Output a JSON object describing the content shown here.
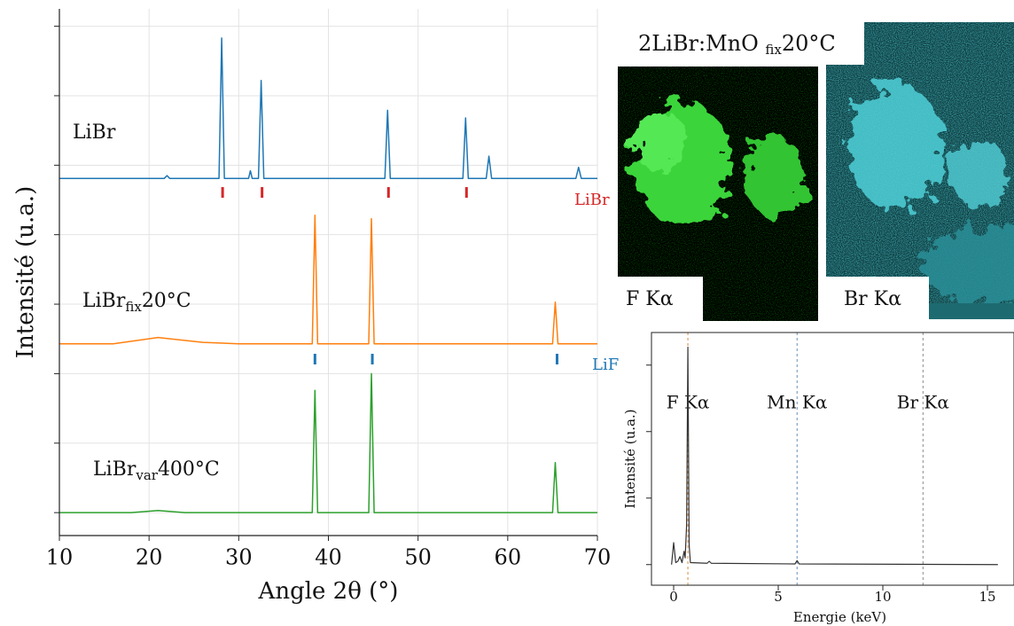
{
  "chart_data": [
    {
      "type": "line",
      "xlabel": "Angle 2θ (°)",
      "ylabel": "Intensité (u.a.)",
      "xlim": [
        10,
        70
      ],
      "xticks": [
        10,
        20,
        30,
        40,
        50,
        60,
        70
      ],
      "ylim": [
        -0.33,
        7.25
      ],
      "yticks": [
        0,
        1,
        2,
        3,
        4,
        5,
        6,
        7
      ],
      "grid": true,
      "series": [
        {
          "name": "LiBr",
          "color": "#1f77b4",
          "x": [
            10,
            21.7,
            22,
            22.3,
            27.8,
            28.1,
            28.4,
            31.1,
            31.3,
            31.5,
            32.2,
            32.5,
            32.8,
            46.3,
            46.6,
            46.9,
            55.0,
            55.3,
            55.6,
            57.6,
            57.9,
            58.2,
            67.6,
            67.9,
            68.2,
            70
          ],
          "values": [
            4.81,
            4.81,
            4.85,
            4.81,
            4.81,
            6.83,
            4.81,
            4.81,
            4.92,
            4.81,
            4.81,
            6.22,
            4.81,
            4.81,
            5.79,
            4.81,
            4.81,
            5.68,
            4.81,
            4.81,
            5.13,
            4.81,
            4.81,
            4.97,
            4.81,
            4.81
          ]
        },
        {
          "name": "LiBr",
          "name_sub": "fix",
          "name_suffix": "20°C",
          "color": "#ff7f0e",
          "x": [
            10,
            16,
            21,
            26,
            30,
            38.2,
            38.5,
            38.8,
            44.5,
            44.8,
            45.1,
            65.0,
            65.3,
            65.6,
            70
          ],
          "values": [
            2.43,
            2.43,
            2.52,
            2.45,
            2.43,
            2.43,
            4.28,
            2.43,
            2.43,
            4.23,
            2.43,
            2.43,
            3.03,
            2.43,
            2.43
          ]
        },
        {
          "name": "LiBr",
          "name_sub": "var",
          "name_suffix": "400°C",
          "color": "#2ca02c",
          "x": [
            10,
            18,
            21,
            24,
            38.2,
            38.5,
            38.8,
            44.5,
            44.8,
            45.1,
            65.0,
            65.3,
            65.6,
            70
          ],
          "values": [
            0,
            0,
            0.03,
            0,
            0,
            1.76,
            0,
            0,
            2.0,
            0,
            0,
            0.72,
            0,
            0
          ]
        }
      ],
      "references": [
        {
          "name": "LiBr",
          "color": "#d62728",
          "x": [
            28.2,
            32.6,
            46.7,
            55.4
          ]
        },
        {
          "name": "LiF",
          "color": "#1f77b4",
          "x": [
            38.5,
            44.9,
            65.5
          ]
        }
      ]
    },
    {
      "type": "line",
      "xlabel": "Energie (keV)",
      "ylabel": "Intensité (u.a.)",
      "xlim": [
        -1.06,
        16.27
      ],
      "xticks": [
        0,
        5,
        10,
        15
      ],
      "ylim": [
        -0.31,
        3.49
      ],
      "yticks": [
        0,
        1,
        2,
        3
      ],
      "grid": false,
      "series": [
        {
          "color": "#333333",
          "x": [
            -0.1,
            0,
            0.1,
            0.2,
            0.3,
            0.4,
            0.5,
            0.55,
            0.62,
            0.68,
            0.74,
            0.8,
            1.6,
            1.7,
            1.8,
            5.8,
            5.9,
            6.0,
            15.5
          ],
          "values": [
            0,
            0.33,
            0.03,
            0.05,
            0.12,
            0.03,
            0.2,
            0.1,
            0.6,
            3.27,
            0.3,
            0.03,
            0.02,
            0.05,
            0.02,
            0.01,
            0.06,
            0.01,
            0
          ]
        }
      ],
      "lines": [
        {
          "label": "F Kα",
          "x": 0.68,
          "color": "#d98c3a"
        },
        {
          "label": "Mn Kα",
          "x": 5.9,
          "color": "#6b8fb5"
        },
        {
          "label": "Br Kα",
          "x": 11.92,
          "color": "#8a8a8a"
        }
      ]
    }
  ],
  "maps": {
    "title": "2LiBr:MnO ",
    "title_sub": "fix",
    "title_suffix": "20°C",
    "panels": [
      {
        "label": "F Kα"
      },
      {
        "label": "Br Kα"
      }
    ]
  }
}
